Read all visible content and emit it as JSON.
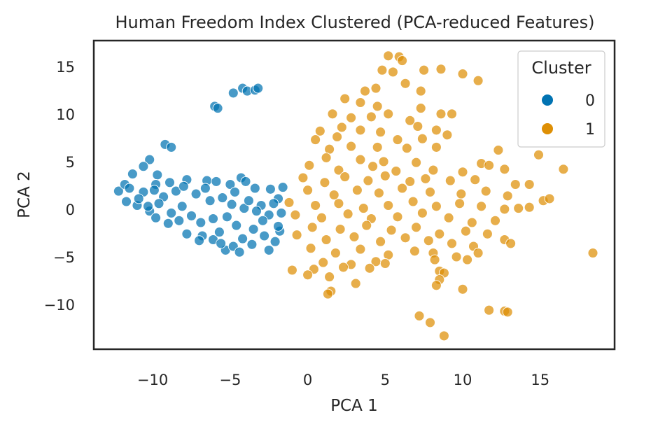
{
  "chart_data": {
    "type": "scatter",
    "title": "Human Freedom Index Clustered (PCA-reduced Features)",
    "xlabel": "PCA 1",
    "ylabel": "PCA 2",
    "xlim": [
      -13.8,
      19.8
    ],
    "ylim": [
      -14.7,
      17.7
    ],
    "xticks": [
      -10,
      -5,
      0,
      5,
      10,
      15
    ],
    "xtick_labels": [
      "−10",
      "−5",
      "0",
      "5",
      "10",
      "15"
    ],
    "yticks": [
      -10,
      -5,
      0,
      5,
      10,
      15
    ],
    "ytick_labels": [
      "−10",
      "−5",
      "0",
      "5",
      "10",
      "15"
    ],
    "grid": false,
    "legend": {
      "title": "Cluster",
      "placement": "top-right"
    },
    "series": [
      {
        "name": "0",
        "color": "#0173b2",
        "points": [
          [
            -6.0,
            10.8
          ],
          [
            -5.8,
            10.6
          ],
          [
            -4.8,
            12.2
          ],
          [
            -4.2,
            12.7
          ],
          [
            -3.9,
            12.4
          ],
          [
            -3.4,
            12.5
          ],
          [
            -3.2,
            12.7
          ],
          [
            -9.2,
            6.8
          ],
          [
            -8.8,
            6.5
          ],
          [
            -10.2,
            5.2
          ],
          [
            -10.6,
            4.5
          ],
          [
            -9.7,
            3.6
          ],
          [
            -11.3,
            3.7
          ],
          [
            -9.8,
            2.6
          ],
          [
            -8.9,
            2.8
          ],
          [
            -7.8,
            3.1
          ],
          [
            -6.5,
            3.0
          ],
          [
            -5.9,
            2.9
          ],
          [
            -5.0,
            2.6
          ],
          [
            -4.3,
            3.3
          ],
          [
            -4.0,
            2.9
          ],
          [
            -3.4,
            2.2
          ],
          [
            -2.4,
            2.1
          ],
          [
            -1.6,
            2.3
          ],
          [
            -1.9,
            1.1
          ],
          [
            -12.2,
            1.9
          ],
          [
            -11.7,
            0.8
          ],
          [
            -11.0,
            0.4
          ],
          [
            -10.2,
            -0.2
          ],
          [
            -9.8,
            -0.9
          ],
          [
            -9.0,
            -1.5
          ],
          [
            -8.3,
            -1.2
          ],
          [
            -7.8,
            -2.6
          ],
          [
            -6.8,
            -2.8
          ],
          [
            -6.1,
            -3.2
          ],
          [
            -5.3,
            -4.3
          ],
          [
            -4.8,
            -3.9
          ],
          [
            -4.4,
            -4.5
          ],
          [
            -3.6,
            -3.7
          ],
          [
            -2.5,
            -4.3
          ],
          [
            -2.1,
            -3.4
          ],
          [
            -1.8,
            -2.3
          ],
          [
            -2.5,
            -0.6
          ],
          [
            -3.0,
            0.4
          ],
          [
            -4.1,
            0.1
          ],
          [
            -5.2,
            -0.8
          ],
          [
            -6.3,
            0.9
          ],
          [
            -7.2,
            1.6
          ],
          [
            -8.1,
            0.3
          ],
          [
            -9.3,
            1.3
          ],
          [
            -10.6,
            1.8
          ],
          [
            -11.8,
            2.6
          ],
          [
            -6.9,
            -1.4
          ],
          [
            -5.7,
            -2.4
          ],
          [
            -4.6,
            -1.7
          ],
          [
            -3.5,
            -2.1
          ],
          [
            -2.9,
            -1.2
          ],
          [
            -7.5,
            -0.7
          ],
          [
            -8.5,
            1.9
          ],
          [
            -9.6,
            0.6
          ],
          [
            -10.9,
            1.1
          ],
          [
            -11.5,
            2.2
          ],
          [
            -6.6,
            2.2
          ],
          [
            -5.5,
            1.2
          ],
          [
            -4.7,
            1.8
          ],
          [
            -3.8,
            0.9
          ],
          [
            -2.2,
            0.6
          ],
          [
            -1.7,
            -0.4
          ],
          [
            -2.8,
            -2.8
          ],
          [
            -4.2,
            -3.1
          ],
          [
            -5.6,
            -3.6
          ],
          [
            -7.0,
            -3.3
          ],
          [
            -8.8,
            -0.4
          ],
          [
            -9.9,
            2.0
          ],
          [
            -6.1,
            -1.0
          ],
          [
            -4.9,
            0.5
          ],
          [
            -3.3,
            -0.2
          ],
          [
            -1.9,
            -1.8
          ],
          [
            -8.0,
            2.4
          ],
          [
            -10.3,
            0.3
          ]
        ]
      },
      {
        "name": "1",
        "color": "#de8f05",
        "points": [
          [
            5.2,
            16.1
          ],
          [
            5.9,
            16.0
          ],
          [
            6.1,
            15.6
          ],
          [
            4.8,
            14.6
          ],
          [
            5.5,
            14.4
          ],
          [
            7.5,
            14.6
          ],
          [
            8.6,
            14.7
          ],
          [
            10.0,
            14.2
          ],
          [
            11.0,
            13.5
          ],
          [
            6.3,
            13.2
          ],
          [
            7.3,
            12.4
          ],
          [
            3.7,
            12.4
          ],
          [
            4.4,
            12.7
          ],
          [
            2.4,
            11.6
          ],
          [
            3.4,
            11.2
          ],
          [
            4.5,
            10.8
          ],
          [
            7.3,
            10.6
          ],
          [
            1.6,
            10.0
          ],
          [
            5.2,
            10.0
          ],
          [
            8.6,
            10.0
          ],
          [
            9.3,
            10.0
          ],
          [
            2.8,
            9.6
          ],
          [
            4.1,
            9.7
          ],
          [
            6.6,
            9.3
          ],
          [
            7.1,
            8.7
          ],
          [
            0.8,
            8.2
          ],
          [
            2.2,
            8.6
          ],
          [
            3.4,
            8.3
          ],
          [
            4.7,
            8.1
          ],
          [
            8.3,
            8.3
          ],
          [
            9.0,
            7.8
          ],
          [
            0.5,
            7.3
          ],
          [
            1.9,
            7.6
          ],
          [
            5.8,
            7.3
          ],
          [
            7.4,
            7.4
          ],
          [
            1.4,
            6.3
          ],
          [
            2.8,
            6.6
          ],
          [
            4.5,
            6.5
          ],
          [
            6.4,
            6.4
          ],
          [
            8.3,
            6.5
          ],
          [
            12.3,
            6.2
          ],
          [
            14.9,
            5.7
          ],
          [
            1.2,
            5.4
          ],
          [
            3.4,
            5.2
          ],
          [
            4.9,
            5.0
          ],
          [
            7.0,
            4.9
          ],
          [
            11.2,
            4.8
          ],
          [
            0.1,
            4.6
          ],
          [
            2.0,
            4.1
          ],
          [
            4.2,
            4.5
          ],
          [
            5.7,
            4.0
          ],
          [
            8.1,
            4.1
          ],
          [
            10.0,
            3.9
          ],
          [
            11.7,
            4.6
          ],
          [
            12.7,
            4.2
          ],
          [
            16.5,
            4.2
          ],
          [
            -0.3,
            3.3
          ],
          [
            1.1,
            2.8
          ],
          [
            2.4,
            3.4
          ],
          [
            3.9,
            3.0
          ],
          [
            5.0,
            3.5
          ],
          [
            6.6,
            2.9
          ],
          [
            7.6,
            3.2
          ],
          [
            9.2,
            3.0
          ],
          [
            10.8,
            3.1
          ],
          [
            13.4,
            2.6
          ],
          [
            14.3,
            2.6
          ],
          [
            0.0,
            2.0
          ],
          [
            1.7,
            1.5
          ],
          [
            3.2,
            2.0
          ],
          [
            4.6,
            1.7
          ],
          [
            6.1,
            2.2
          ],
          [
            7.9,
            1.8
          ],
          [
            9.9,
            1.6
          ],
          [
            11.5,
            1.9
          ],
          [
            12.9,
            1.4
          ],
          [
            15.2,
            0.9
          ],
          [
            15.6,
            1.1
          ],
          [
            -1.2,
            0.7
          ],
          [
            0.5,
            0.4
          ],
          [
            2.0,
            0.6
          ],
          [
            3.6,
            0.1
          ],
          [
            5.2,
            0.4
          ],
          [
            6.8,
            0.8
          ],
          [
            8.3,
            0.3
          ],
          [
            9.8,
            0.6
          ],
          [
            11.2,
            0.3
          ],
          [
            12.7,
            0.0
          ],
          [
            13.6,
            0.1
          ],
          [
            14.3,
            0.2
          ],
          [
            -0.8,
            -0.6
          ],
          [
            0.9,
            -0.9
          ],
          [
            2.6,
            -0.5
          ],
          [
            4.1,
            -1.0
          ],
          [
            5.8,
            -0.8
          ],
          [
            7.4,
            -0.4
          ],
          [
            9.1,
            -0.9
          ],
          [
            10.6,
            -1.4
          ],
          [
            12.1,
            -1.2
          ],
          [
            0.3,
            -1.9
          ],
          [
            2.1,
            -2.1
          ],
          [
            3.8,
            -1.7
          ],
          [
            5.4,
            -2.2
          ],
          [
            7.0,
            -1.9
          ],
          [
            8.5,
            -2.6
          ],
          [
            10.2,
            -2.3
          ],
          [
            11.6,
            -2.6
          ],
          [
            -0.7,
            -2.7
          ],
          [
            1.2,
            -3.2
          ],
          [
            3.0,
            -2.9
          ],
          [
            4.7,
            -3.4
          ],
          [
            6.3,
            -3.0
          ],
          [
            7.8,
            -3.3
          ],
          [
            9.3,
            -3.6
          ],
          [
            10.7,
            -3.9
          ],
          [
            12.7,
            -3.2
          ],
          [
            13.1,
            -3.6
          ],
          [
            0.2,
            -4.1
          ],
          [
            1.8,
            -4.6
          ],
          [
            3.4,
            -4.2
          ],
          [
            5.2,
            -4.8
          ],
          [
            6.9,
            -4.4
          ],
          [
            8.1,
            -4.6
          ],
          [
            9.6,
            -5.0
          ],
          [
            11.0,
            -4.6
          ],
          [
            1.0,
            -5.6
          ],
          [
            2.8,
            -5.8
          ],
          [
            4.4,
            -5.5
          ],
          [
            5.0,
            -5.7
          ],
          [
            8.2,
            -5.3
          ],
          [
            10.3,
            -5.3
          ],
          [
            0.4,
            -6.3
          ],
          [
            2.3,
            -6.1
          ],
          [
            4.0,
            -6.2
          ],
          [
            8.5,
            -6.5
          ],
          [
            8.8,
            -6.7
          ],
          [
            -1.0,
            -6.4
          ],
          [
            0.0,
            -6.9
          ],
          [
            1.4,
            -7.1
          ],
          [
            8.5,
            -7.4
          ],
          [
            8.3,
            -8.0
          ],
          [
            3.1,
            -7.8
          ],
          [
            1.5,
            -8.6
          ],
          [
            1.3,
            -8.9
          ],
          [
            10.0,
            -8.4
          ],
          [
            7.2,
            -11.2
          ],
          [
            7.9,
            -11.9
          ],
          [
            11.7,
            -10.6
          ],
          [
            12.7,
            -10.7
          ],
          [
            12.9,
            -10.8
          ],
          [
            8.8,
            -13.3
          ],
          [
            18.4,
            -4.6
          ]
        ]
      }
    ]
  }
}
